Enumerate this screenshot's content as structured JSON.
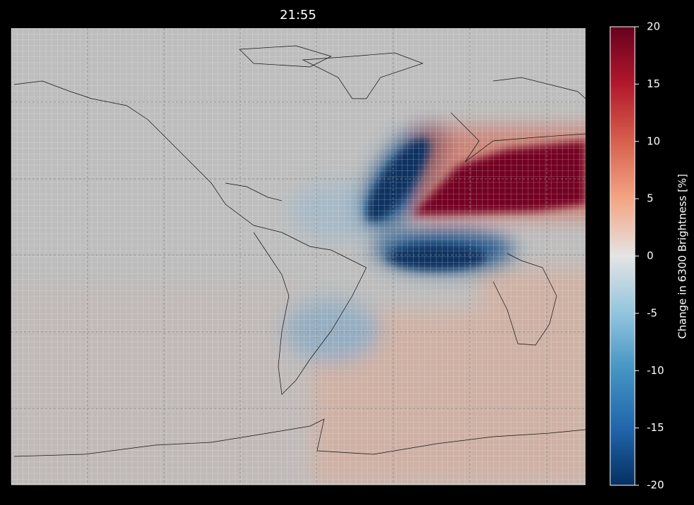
{
  "title": "21:55",
  "colorbar": {
    "label": "Change in 6300 Brightness [%]",
    "lim": [
      -20,
      20
    ],
    "ticks": [
      -20,
      -15,
      -10,
      -5,
      0,
      5,
      10,
      15,
      20
    ],
    "colormap": [
      "#053061",
      "#2166ac",
      "#4393c3",
      "#92c5de",
      "#e4e4e4",
      "#f4a582",
      "#d6604d",
      "#b2182b",
      "#67001f"
    ]
  }
}
